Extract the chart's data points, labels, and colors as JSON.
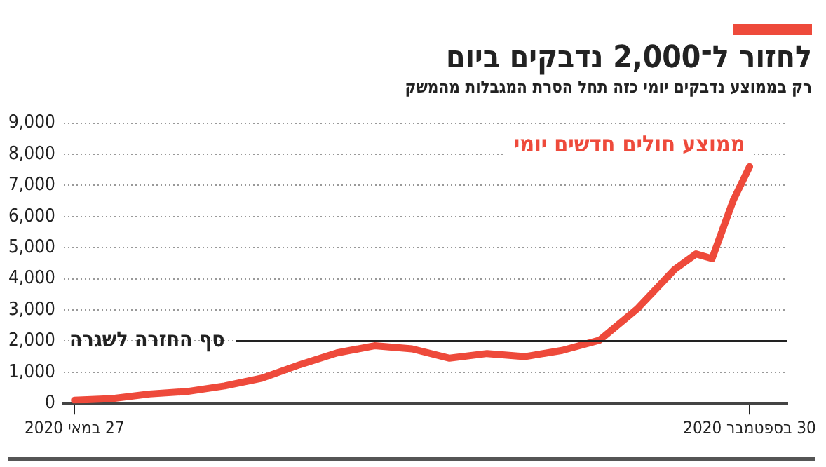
{
  "chart_data": {
    "type": "line",
    "title": "לחזור ל־2,000 נדבקים ביום",
    "subtitle": "רק בממוצע נדבקים יומי כזה תחל הסרת המגבלות מהמשק",
    "x": [
      "2020-05-27",
      "2020-06-03",
      "2020-06-10",
      "2020-06-17",
      "2020-06-24",
      "2020-07-01",
      "2020-07-08",
      "2020-07-15",
      "2020-07-22",
      "2020-07-29",
      "2020-08-05",
      "2020-08-12",
      "2020-08-19",
      "2020-08-26",
      "2020-09-02",
      "2020-09-09",
      "2020-09-16",
      "2020-09-20",
      "2020-09-23",
      "2020-09-27",
      "2020-09-30"
    ],
    "series": [
      {
        "name": "ממוצע חולים חדשים יומי",
        "color": "#ee4a3b",
        "values": [
          100,
          150,
          300,
          380,
          560,
          810,
          1240,
          1620,
          1850,
          1750,
          1450,
          1600,
          1500,
          1700,
          2030,
          3030,
          4300,
          4800,
          4650,
          6540,
          7600
        ]
      }
    ],
    "xlim": [
      "2020-05-25",
      "2020-10-07"
    ],
    "xticks": [
      {
        "value": "2020-05-27",
        "label": "27 במאי 2020"
      },
      {
        "value": "2020-09-30",
        "label": "30 בספטמבר 2020"
      }
    ],
    "ylim": [
      0,
      9000
    ],
    "yticks": [
      {
        "value": 0,
        "label": "0"
      },
      {
        "value": 1000,
        "label": "1,000"
      },
      {
        "value": 2000,
        "label": "2,000"
      },
      {
        "value": 3000,
        "label": "3,000"
      },
      {
        "value": 4000,
        "label": "4,000"
      },
      {
        "value": 5000,
        "label": "5,000"
      },
      {
        "value": 6000,
        "label": "6,000"
      },
      {
        "value": 7000,
        "label": "7,000"
      },
      {
        "value": 8000,
        "label": "8,000"
      },
      {
        "value": 9000,
        "label": "9,000"
      }
    ],
    "grid": "y",
    "line_style": "solid",
    "marker": "none",
    "ref_lines": [
      {
        "axis": "y",
        "value": 2000,
        "label": "סף החזרה לשגרה",
        "color": "#222222"
      }
    ]
  }
}
